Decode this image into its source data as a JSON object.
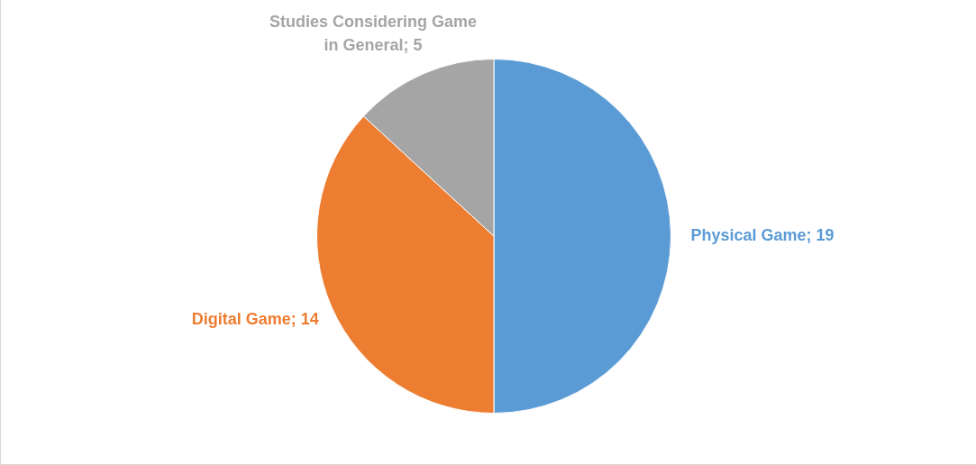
{
  "chart_data": {
    "type": "pie",
    "categories": [
      "Physical Game",
      "Digital Game",
      "Studies Considering Game in General"
    ],
    "values": [
      19,
      14,
      5
    ],
    "colors": [
      "#5b9bd5",
      "#ed7d31",
      "#a5a5a5"
    ],
    "value_labels": [
      "; 19",
      "; 14",
      "; 5"
    ],
    "legend": false
  }
}
